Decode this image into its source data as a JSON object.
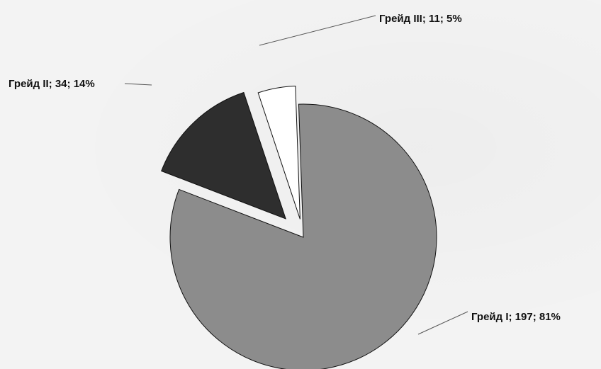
{
  "chart_data": {
    "type": "pie",
    "title": "",
    "slices": [
      {
        "label": "Грейд I; 197; 81%",
        "name": "Грейд I",
        "value": 197,
        "percent": 81,
        "color": "#8c8c8c"
      },
      {
        "label": "Грейд II; 34; 14%",
        "name": "Грейд II",
        "value": 34,
        "percent": 14,
        "color": "#2e2e2e"
      },
      {
        "label": "Грейд III; 11; 5%",
        "name": "Грейд III",
        "value": 11,
        "percent": 5,
        "color": "#ffffff"
      }
    ],
    "exploded": true,
    "legend": "none"
  }
}
